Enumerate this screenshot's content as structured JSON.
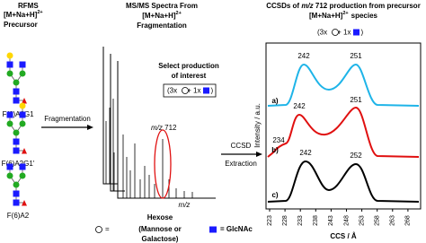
{
  "left": {
    "title": "RFMS",
    "ion": "[M+Na+H]",
    "charge": "2+",
    "subtitle": "Precursor",
    "glycans": [
      "F(6)A2G1",
      "F(6)A2G1'",
      "F(6)A2"
    ],
    "arrow": "Fragmentation"
  },
  "middle": {
    "title": "MS/MS Spectra From",
    "ion": "[M+Na+H]",
    "charge": "2+",
    "subtitle": "Fragmentation",
    "select": [
      "Select production",
      "of interest"
    ],
    "composition": [
      "(3x",
      "+ 1x",
      ")"
    ],
    "mz_italic": "m/z",
    "mz_value": "712",
    "x_label": "m/z"
  },
  "legend": {
    "hexose_eq": "=",
    "hexose": "Hexose",
    "hexose_detail": [
      "(Mannose or",
      "Galactose)"
    ],
    "glcnac": "= GlcNAc"
  },
  "arrow2": [
    "CCSD",
    "Extraction"
  ],
  "right": {
    "title_pre": "CCSDs of",
    "title_mz": "m/z",
    "title_post": "712 production from precursor",
    "ion": "[M+Na+H]",
    "charge": "2+",
    "subtitle_post": "species",
    "composition": [
      "(3x",
      "+ 1x",
      ")"
    ],
    "y_label": "Intensity / a.u.",
    "x_label": "CCS / Å",
    "x_ticks": [
      223,
      228,
      233,
      238,
      243,
      248,
      253,
      258,
      263,
      268
    ],
    "traces": [
      {
        "label": "a)",
        "peaks": [
          242,
          251
        ]
      },
      {
        "label": "b)",
        "peaks": [
          234,
          242,
          251
        ]
      },
      {
        "label": "c)",
        "peaks": [
          242,
          252
        ]
      }
    ]
  }
}
